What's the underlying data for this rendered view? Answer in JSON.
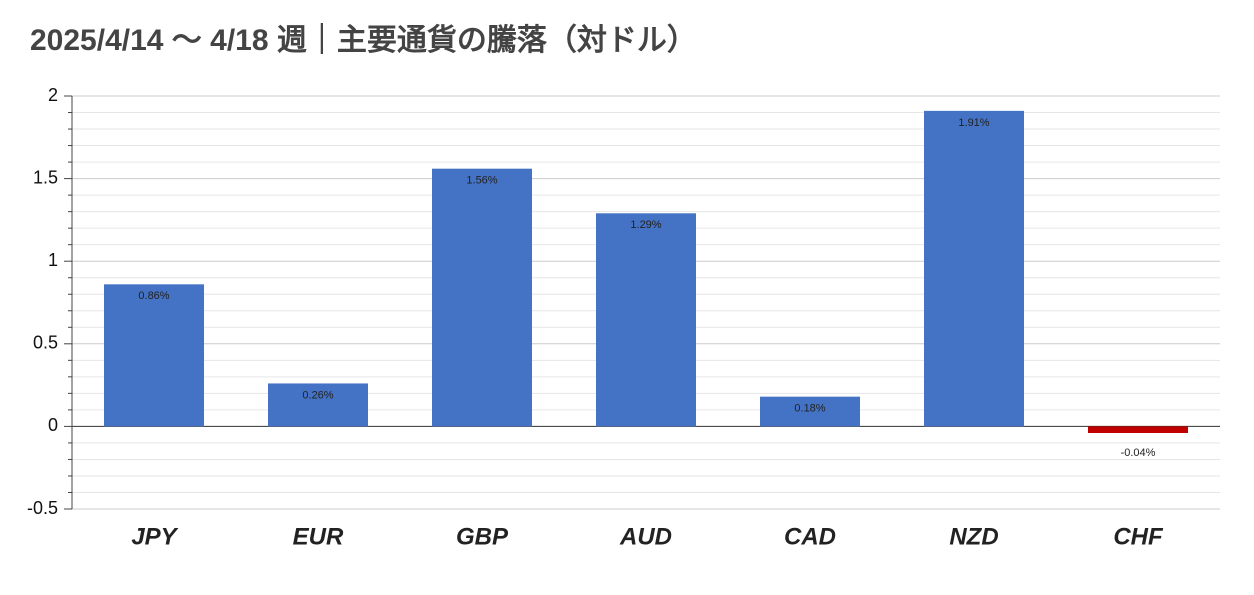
{
  "chart_data": {
    "type": "bar",
    "title": "2025/4/14 〜 4/18 週｜主要通貨の騰落（対ドル）",
    "categories": [
      "JPY",
      "EUR",
      "GBP",
      "AUD",
      "CAD",
      "NZD",
      "CHF"
    ],
    "values": [
      0.86,
      0.26,
      1.56,
      1.29,
      0.18,
      1.91,
      -0.04
    ],
    "value_labels": [
      "0.86%",
      "0.26%",
      "1.56%",
      "1.29%",
      "0.18%",
      "1.91%",
      "-0.04%"
    ],
    "colors": [
      "#4472c4",
      "#4472c4",
      "#4472c4",
      "#4472c4",
      "#4472c4",
      "#4472c4",
      "#c00000"
    ],
    "ylim": [
      -0.5,
      2
    ],
    "yticks": [
      -0.5,
      0,
      0.5,
      1,
      1.5,
      2
    ],
    "grid": true,
    "minor_grid": true
  }
}
